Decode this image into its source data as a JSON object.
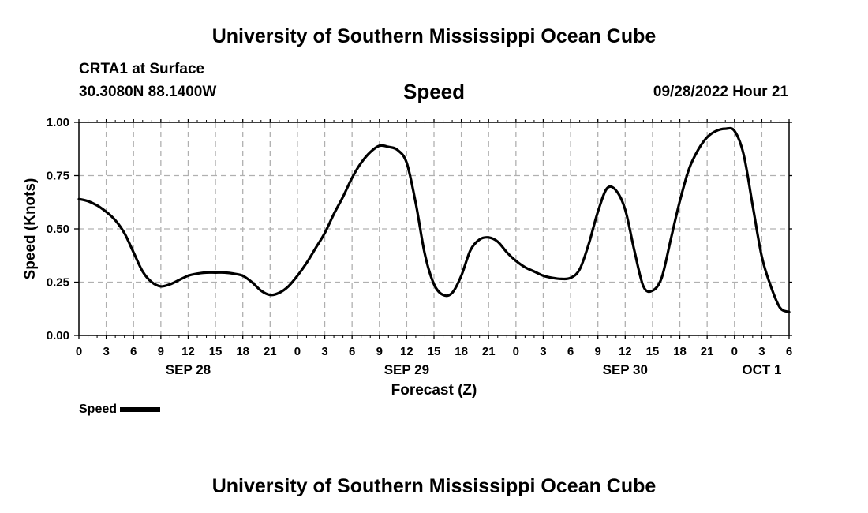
{
  "header": {
    "title": "University of Southern Mississippi Ocean Cube",
    "station": "CRTA1 at Surface",
    "coords": "30.3080N  88.1400W",
    "date_hour": "09/28/2022 Hour 21"
  },
  "footer": {
    "title": "University of Southern Mississippi Ocean Cube"
  },
  "legend": {
    "label": "Speed"
  },
  "colors": {
    "line": "#000000",
    "grid": "#b0b0b0",
    "background": "#ffffff"
  },
  "chart_data": {
    "type": "line",
    "title": "Speed",
    "xlabel": "Forecast (Z)",
    "ylabel": "Speed (Knots)",
    "x_unit": "hours since SEP 28 00Z",
    "xlim": [
      0,
      78
    ],
    "ylim": [
      0,
      1
    ],
    "grid": true,
    "x_ticks": [
      {
        "hour": 0,
        "label": "0"
      },
      {
        "hour": 3,
        "label": "3"
      },
      {
        "hour": 6,
        "label": "6"
      },
      {
        "hour": 9,
        "label": "9"
      },
      {
        "hour": 12,
        "label": "12"
      },
      {
        "hour": 15,
        "label": "15"
      },
      {
        "hour": 18,
        "label": "18"
      },
      {
        "hour": 21,
        "label": "21"
      },
      {
        "hour": 24,
        "label": "0"
      },
      {
        "hour": 27,
        "label": "3"
      },
      {
        "hour": 30,
        "label": "6"
      },
      {
        "hour": 33,
        "label": "9"
      },
      {
        "hour": 36,
        "label": "12"
      },
      {
        "hour": 39,
        "label": "15"
      },
      {
        "hour": 42,
        "label": "18"
      },
      {
        "hour": 45,
        "label": "21"
      },
      {
        "hour": 48,
        "label": "0"
      },
      {
        "hour": 51,
        "label": "3"
      },
      {
        "hour": 54,
        "label": "6"
      },
      {
        "hour": 57,
        "label": "9"
      },
      {
        "hour": 60,
        "label": "12"
      },
      {
        "hour": 63,
        "label": "15"
      },
      {
        "hour": 66,
        "label": "18"
      },
      {
        "hour": 69,
        "label": "21"
      },
      {
        "hour": 72,
        "label": "0"
      },
      {
        "hour": 75,
        "label": "3"
      },
      {
        "hour": 78,
        "label": "6"
      }
    ],
    "y_ticks": [
      {
        "value": 0,
        "label": "0.00"
      },
      {
        "value": 0.25,
        "label": "0.25"
      },
      {
        "value": 0.5,
        "label": "0.50"
      },
      {
        "value": 0.75,
        "label": "0.75"
      },
      {
        "value": 1.0,
        "label": "1.00"
      }
    ],
    "day_labels": [
      {
        "hour": 12,
        "label": "SEP 28"
      },
      {
        "hour": 36,
        "label": "SEP 29"
      },
      {
        "hour": 60,
        "label": "SEP 30"
      },
      {
        "hour": 75,
        "label": "OCT 1"
      }
    ],
    "series": [
      {
        "name": "Speed",
        "x": [
          0,
          1,
          2,
          3,
          4,
          5,
          6,
          7,
          8,
          9,
          10,
          11,
          12,
          13,
          14,
          15,
          16,
          17,
          18,
          19,
          20,
          21,
          22,
          23,
          24,
          25,
          26,
          27,
          28,
          29,
          30,
          31,
          32,
          33,
          34,
          35,
          36,
          37,
          38,
          39,
          40,
          41,
          42,
          43,
          44,
          45,
          46,
          47,
          48,
          49,
          50,
          51,
          52,
          53,
          54,
          55,
          56,
          57,
          58,
          59,
          60,
          61,
          62,
          63,
          64,
          65,
          66,
          67,
          68,
          69,
          70,
          71,
          72,
          73,
          74,
          75,
          76,
          77,
          78
        ],
        "values": [
          0.64,
          0.63,
          0.61,
          0.58,
          0.54,
          0.48,
          0.39,
          0.3,
          0.25,
          0.23,
          0.24,
          0.26,
          0.28,
          0.29,
          0.295,
          0.295,
          0.295,
          0.29,
          0.28,
          0.25,
          0.21,
          0.19,
          0.2,
          0.23,
          0.28,
          0.34,
          0.41,
          0.48,
          0.57,
          0.65,
          0.74,
          0.81,
          0.86,
          0.89,
          0.885,
          0.87,
          0.81,
          0.62,
          0.38,
          0.24,
          0.19,
          0.2,
          0.28,
          0.4,
          0.45,
          0.46,
          0.44,
          0.39,
          0.35,
          0.32,
          0.3,
          0.28,
          0.27,
          0.265,
          0.27,
          0.31,
          0.43,
          0.58,
          0.69,
          0.68,
          0.59,
          0.4,
          0.23,
          0.21,
          0.27,
          0.45,
          0.63,
          0.78,
          0.87,
          0.93,
          0.96,
          0.97,
          0.96,
          0.85,
          0.61,
          0.37,
          0.23,
          0.13,
          0.11
        ]
      }
    ]
  }
}
